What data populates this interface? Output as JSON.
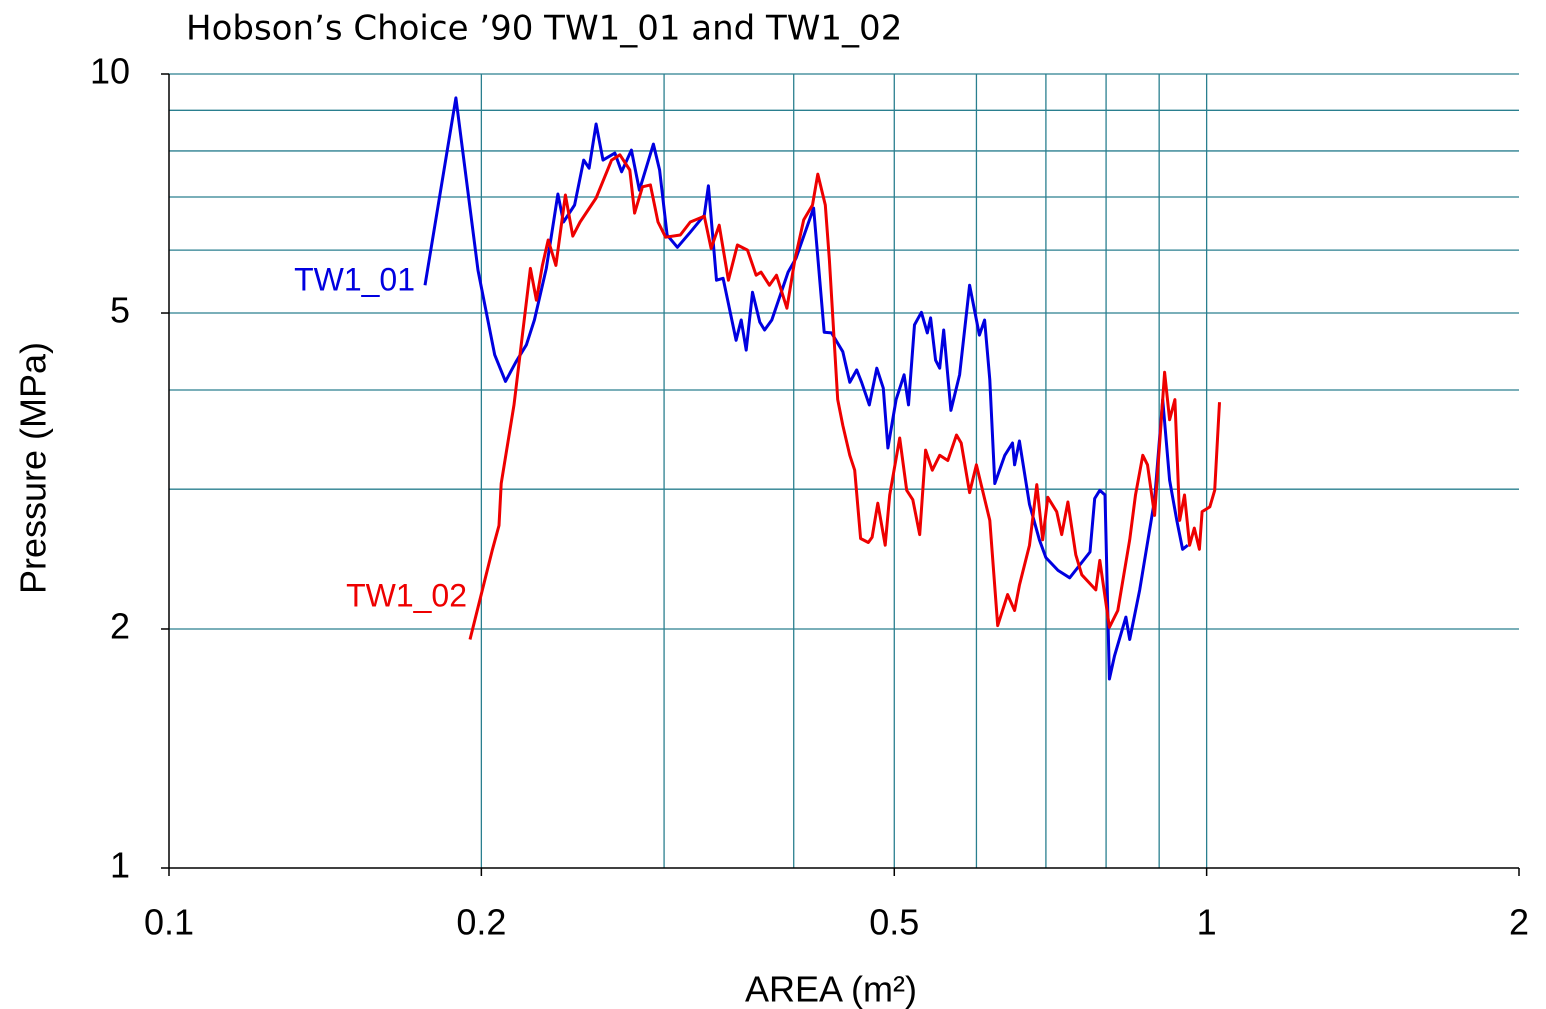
{
  "chart_data": {
    "type": "line",
    "title": "Hobson’s Choice ’90 TW1_01 and TW1_02",
    "xlabel": "AREA (m²)",
    "ylabel": "Pressure (MPa)",
    "xscale": "log",
    "yscale": "log",
    "xlim": [
      0.1,
      2
    ],
    "ylim": [
      1,
      10
    ],
    "xticks": [
      0.1,
      0.2,
      0.5,
      1,
      2
    ],
    "yticks": [
      1,
      2,
      5,
      10
    ],
    "grid": true,
    "grid_color": "#2a7f8f",
    "xgrid": [
      0.2,
      0.3,
      0.4,
      0.5,
      0.6,
      0.7,
      0.8,
      0.9,
      1
    ],
    "ygrid": [
      2,
      3,
      4,
      5,
      6,
      7,
      8,
      9,
      10
    ],
    "series": [
      {
        "name": "TW1_01",
        "color": "#0000e0",
        "x": [
          0.1765,
          0.189,
          0.1985,
          0.206,
          0.211,
          0.216,
          0.221,
          0.225,
          0.231,
          0.237,
          0.24,
          0.246,
          0.251,
          0.254,
          0.258,
          0.262,
          0.269,
          0.273,
          0.279,
          0.284,
          0.293,
          0.297,
          0.302,
          0.309,
          0.318,
          0.328,
          0.331,
          0.337,
          0.342,
          0.352,
          0.356,
          0.36,
          0.365,
          0.371,
          0.375,
          0.381,
          0.395,
          0.402,
          0.418,
          0.428,
          0.435,
          0.446,
          0.453,
          0.46,
          0.465,
          0.473,
          0.481,
          0.488,
          0.493,
          0.502,
          0.511,
          0.516,
          0.523,
          0.531,
          0.538,
          0.542,
          0.548,
          0.553,
          0.558,
          0.567,
          0.578,
          0.591,
          0.604,
          0.611,
          0.618,
          0.625,
          0.639,
          0.65,
          0.653,
          0.66,
          0.675,
          0.69,
          0.7,
          0.719,
          0.738,
          0.772,
          0.78,
          0.789,
          0.798,
          0.806,
          0.815,
          0.836,
          0.843,
          0.862,
          0.891,
          0.907,
          0.921,
          0.936,
          0.948,
          0.959
        ],
        "values": [
          5.42,
          9.33,
          5.66,
          4.43,
          4.1,
          4.34,
          4.56,
          4.9,
          5.69,
          7.06,
          6.51,
          6.84,
          7.79,
          7.61,
          8.65,
          7.79,
          7.95,
          7.53,
          8.02,
          7.14,
          8.16,
          7.57,
          6.27,
          6.05,
          6.32,
          6.64,
          7.23,
          5.5,
          5.53,
          4.62,
          4.9,
          4.49,
          5.31,
          4.87,
          4.76,
          4.9,
          5.63,
          5.86,
          6.78,
          4.73,
          4.72,
          4.47,
          4.09,
          4.24,
          4.09,
          3.83,
          4.26,
          4.02,
          3.38,
          3.89,
          4.18,
          3.83,
          4.83,
          5.01,
          4.72,
          4.93,
          4.36,
          4.26,
          4.76,
          3.77,
          4.18,
          5.42,
          4.69,
          4.9,
          4.12,
          3.05,
          3.31,
          3.43,
          3.22,
          3.45,
          2.87,
          2.59,
          2.46,
          2.37,
          2.32,
          2.5,
          2.92,
          2.99,
          2.95,
          1.73,
          1.85,
          2.07,
          1.94,
          2.24,
          2.91,
          3.89,
          3.08,
          2.74,
          2.52,
          2.55
        ]
      },
      {
        "name": "TW1_02",
        "color": "#ee0000",
        "x": [
          0.195,
          0.205,
          0.208,
          0.209,
          0.215,
          0.223,
          0.226,
          0.229,
          0.232,
          0.236,
          0.241,
          0.245,
          0.249,
          0.258,
          0.267,
          0.272,
          0.278,
          0.281,
          0.286,
          0.291,
          0.296,
          0.301,
          0.311,
          0.318,
          0.328,
          0.333,
          0.339,
          0.346,
          0.353,
          0.361,
          0.368,
          0.372,
          0.379,
          0.385,
          0.394,
          0.401,
          0.409,
          0.417,
          0.422,
          0.429,
          0.433,
          0.441,
          0.446,
          0.453,
          0.458,
          0.464,
          0.472,
          0.476,
          0.482,
          0.49,
          0.495,
          0.506,
          0.514,
          0.521,
          0.529,
          0.536,
          0.544,
          0.553,
          0.563,
          0.574,
          0.58,
          0.591,
          0.6,
          0.618,
          0.629,
          0.643,
          0.653,
          0.66,
          0.675,
          0.686,
          0.695,
          0.703,
          0.717,
          0.725,
          0.735,
          0.748,
          0.758,
          0.782,
          0.789,
          0.806,
          0.821,
          0.843,
          0.854,
          0.868,
          0.877,
          0.891,
          0.911,
          0.921,
          0.932,
          0.942,
          0.952,
          0.963,
          0.973,
          0.984,
          0.99,
          1.007,
          1.018,
          1.029
        ],
        "values": [
          1.94,
          2.52,
          2.7,
          3.05,
          3.83,
          5.69,
          5.19,
          5.74,
          6.18,
          5.74,
          7.04,
          6.25,
          6.51,
          6.98,
          7.79,
          7.91,
          7.57,
          6.68,
          7.21,
          7.25,
          6.51,
          6.23,
          6.27,
          6.51,
          6.62,
          6.03,
          6.45,
          5.5,
          6.09,
          6.0,
          5.58,
          5.63,
          5.42,
          5.58,
          5.07,
          5.83,
          6.55,
          6.84,
          7.48,
          6.84,
          5.83,
          3.89,
          3.61,
          3.31,
          3.17,
          2.6,
          2.57,
          2.61,
          2.88,
          2.55,
          2.95,
          3.48,
          2.99,
          2.91,
          2.63,
          3.36,
          3.17,
          3.31,
          3.26,
          3.51,
          3.43,
          2.97,
          3.22,
          2.74,
          2.02,
          2.21,
          2.11,
          2.27,
          2.55,
          3.04,
          2.59,
          2.93,
          2.81,
          2.63,
          2.89,
          2.48,
          2.34,
          2.24,
          2.44,
          2.01,
          2.11,
          2.59,
          2.95,
          3.31,
          3.22,
          2.78,
          4.21,
          3.67,
          3.89,
          2.74,
          2.95,
          2.55,
          2.68,
          2.52,
          2.81,
          2.85,
          2.99,
          3.86
        ]
      }
    ]
  }
}
